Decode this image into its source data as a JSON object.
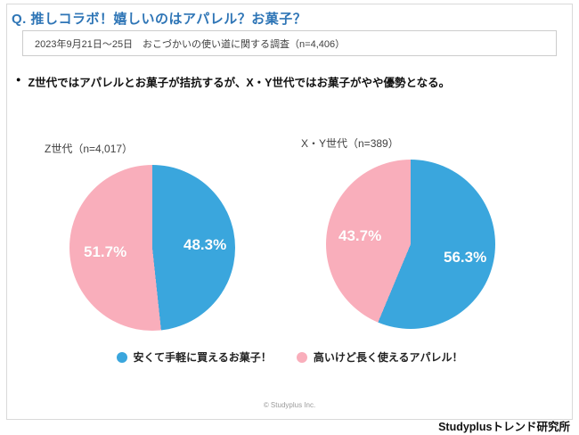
{
  "page": {
    "title": "Q. 推しコラボ！嬉しいのはアパレル？お菓子？",
    "survey_note": "2023年9月21日〜25日　おこづかいの使い道に関する調査（n=4,406）",
    "bullet": "●",
    "insight": "Z世代ではアパレルとお菓子が拮抗するが、X・Y世代ではお菓子がやや優勢となる。",
    "copyright": "© Studyplus Inc.",
    "brand": "Studyplusトレンド研究所"
  },
  "colors": {
    "title_blue": "#2e75b6",
    "pie_blue": "#3aa6dd",
    "pie_pink": "#f9aebb"
  },
  "chart_data": [
    {
      "type": "pie",
      "title": "Z世代（n=4,017）",
      "labels": [
        "安くて手軽に買えるお菓子！",
        "高いけど長く使えるアパレル！"
      ],
      "values": [
        48.3,
        51.7
      ],
      "value_labels": [
        "48.3%",
        "51.7%"
      ],
      "colors": [
        "#3aa6dd",
        "#f9aebb"
      ],
      "start_angle_deg": 0,
      "legend_position": "bottom"
    },
    {
      "type": "pie",
      "title": "X・Y世代（n=389）",
      "labels": [
        "安くて手軽に買えるお菓子！",
        "高いけど長く使えるアパレル！"
      ],
      "values": [
        56.3,
        43.7
      ],
      "value_labels": [
        "56.3%",
        "43.7%"
      ],
      "colors": [
        "#3aa6dd",
        "#f9aebb"
      ],
      "start_angle_deg": 0,
      "legend_position": "bottom"
    }
  ],
  "legend": [
    {
      "label": "安くて手軽に買えるお菓子！",
      "color": "#3aa6dd"
    },
    {
      "label": "高いけど長く使えるアパレル！",
      "color": "#f9aebb"
    }
  ]
}
